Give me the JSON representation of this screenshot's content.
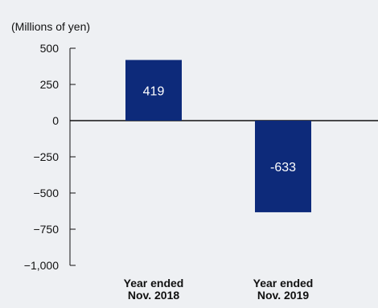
{
  "unit_label": "(Millions of yen)",
  "chart_data": {
    "type": "bar",
    "ylabel": "(Millions of yen)",
    "ylim": [
      -1000,
      500
    ],
    "yticks": [
      500,
      250,
      0,
      -250,
      -500,
      -750,
      -1000
    ],
    "ytick_labels": [
      "500",
      "250",
      "0",
      "−250",
      "−500",
      "−750",
      "−1,000"
    ],
    "categories": [
      [
        "Year ended",
        "Nov. 2018"
      ],
      [
        "Year ended",
        "Nov. 2019"
      ]
    ],
    "values": [
      419,
      -633
    ],
    "data_labels": [
      "419",
      "-633"
    ],
    "bar_color": "#0d2a7a",
    "background_color": "#eef0f3"
  }
}
